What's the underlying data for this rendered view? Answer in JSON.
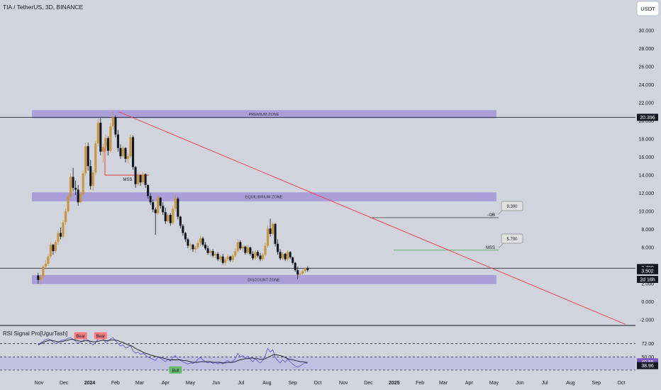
{
  "header": {
    "symbol_title": "TIA / TetherUS, 3D, BINANCE",
    "currency_button": "USDT"
  },
  "price_axis": {
    "ticks": [
      "30.000",
      "28.000",
      "26.000",
      "24.000",
      "22.000",
      "20.000",
      "18.000",
      "16.000",
      "14.000",
      "12.000",
      "10.000",
      "8.000",
      "6.000",
      "4.000",
      "2.000",
      "0.000",
      "-2.000"
    ],
    "badges": [
      {
        "label": "20.396",
        "value": 20.396,
        "style": "dark"
      },
      {
        "label": "3.700",
        "value": 3.7,
        "style": "dark"
      },
      {
        "label": "3.502",
        "value": 3.502,
        "style": "dark"
      },
      {
        "label": "2d 16h",
        "value": 2.55,
        "style": "dark"
      }
    ]
  },
  "time_axis": {
    "labels": [
      "Nov",
      "Dec",
      "2024",
      "Feb",
      "Mar",
      "Apr",
      "May",
      "Jun",
      "Jul",
      "Aug",
      "Sep",
      "Oct",
      "Nov",
      "Dec",
      "2025",
      "Feb",
      "Mar",
      "Apr",
      "May",
      "Jun",
      "Jul",
      "Aug",
      "Sep",
      "Oct"
    ],
    "bold": [
      "2024",
      "2025"
    ]
  },
  "zones": [
    {
      "label": "PREMIUM ZONE",
      "low": 20.3,
      "high": 21.2
    },
    {
      "label": "EQUILIBRIUM ZONE",
      "low": 11.1,
      "high": 12.1
    },
    {
      "label": "DISCOUNT ZONE",
      "low": 1.95,
      "high": 2.95
    }
  ],
  "annotations": {
    "mss_top": "MSS",
    "mss_right": "MSS",
    "ob_label": "-OB",
    "target_high": "9.300",
    "target_mid": "5.700"
  },
  "levels": {
    "top_line": 20.396,
    "current_line": 3.7,
    "ob_line": 9.3,
    "mss_line": 5.7,
    "mss_top_line": 14.0
  },
  "trendline": {
    "start": {
      "date": "2024-02-05",
      "value": 21.0
    },
    "end": {
      "date": "2025-10-06",
      "value": -2.5
    }
  },
  "chart_data": {
    "type": "candlestick",
    "title": "TIA / TetherUS, 3D, BINANCE",
    "ylim": [
      -2.5,
      31.5
    ],
    "candles": [
      [
        2.9,
        3.2,
        2.0,
        2.4
      ],
      [
        2.4,
        3.0,
        1.9,
        2.7
      ],
      [
        2.7,
        4.1,
        2.6,
        3.9
      ],
      [
        3.9,
        4.6,
        3.6,
        4.2
      ],
      [
        4.2,
        5.3,
        4.0,
        5.0
      ],
      [
        5.0,
        6.6,
        4.8,
        6.3
      ],
      [
        6.3,
        6.4,
        5.2,
        5.6
      ],
      [
        5.6,
        6.8,
        5.4,
        6.6
      ],
      [
        6.6,
        7.9,
        6.3,
        7.6
      ],
      [
        7.6,
        8.2,
        6.9,
        7.2
      ],
      [
        7.2,
        9.0,
        7.0,
        8.8
      ],
      [
        8.8,
        10.3,
        8.5,
        10.0
      ],
      [
        10.0,
        12.0,
        9.8,
        11.6
      ],
      [
        11.6,
        14.2,
        11.3,
        13.8
      ],
      [
        13.8,
        14.8,
        12.2,
        12.6
      ],
      [
        12.6,
        13.4,
        11.8,
        12.4
      ],
      [
        12.4,
        12.9,
        10.6,
        11.0
      ],
      [
        11.0,
        12.2,
        10.9,
        11.9
      ],
      [
        11.9,
        14.5,
        11.7,
        14.2
      ],
      [
        14.2,
        17.6,
        13.9,
        17.2
      ],
      [
        17.2,
        17.6,
        14.5,
        15.0
      ],
      [
        15.0,
        15.7,
        12.4,
        12.8
      ],
      [
        12.8,
        14.6,
        12.3,
        14.3
      ],
      [
        14.3,
        17.8,
        14.0,
        17.5
      ],
      [
        17.5,
        20.2,
        17.2,
        19.8
      ],
      [
        19.8,
        20.3,
        16.2,
        16.6
      ],
      [
        16.6,
        17.5,
        15.4,
        17.1
      ],
      [
        17.1,
        18.5,
        16.6,
        18.1
      ],
      [
        18.1,
        18.3,
        16.2,
        16.7
      ],
      [
        16.7,
        19.8,
        16.5,
        19.4
      ],
      [
        19.4,
        21.0,
        19.0,
        20.4
      ],
      [
        20.4,
        20.6,
        18.2,
        18.5
      ],
      [
        18.5,
        19.0,
        16.6,
        17.0
      ],
      [
        17.0,
        17.4,
        15.8,
        16.1
      ],
      [
        16.1,
        17.2,
        15.9,
        17.0
      ],
      [
        17.0,
        17.1,
        15.4,
        15.8
      ],
      [
        15.8,
        16.4,
        15.3,
        16.1
      ],
      [
        16.1,
        18.5,
        15.9,
        18.2
      ],
      [
        18.2,
        18.4,
        14.6,
        14.9
      ],
      [
        14.9,
        15.0,
        12.6,
        13.0
      ],
      [
        13.0,
        14.3,
        12.8,
        14.0
      ],
      [
        14.0,
        14.1,
        12.8,
        13.2
      ],
      [
        13.2,
        14.4,
        13.0,
        14.1
      ],
      [
        14.1,
        14.2,
        12.6,
        12.9
      ],
      [
        12.9,
        13.0,
        11.4,
        11.7
      ],
      [
        11.7,
        12.0,
        10.7,
        11.0
      ],
      [
        11.0,
        11.3,
        9.9,
        10.2
      ],
      [
        10.2,
        10.4,
        7.4,
        9.8
      ],
      [
        9.8,
        11.8,
        9.6,
        11.5
      ],
      [
        11.5,
        11.6,
        10.3,
        10.6
      ],
      [
        10.6,
        11.0,
        9.6,
        9.9
      ],
      [
        9.9,
        10.4,
        8.6,
        8.9
      ],
      [
        8.9,
        9.8,
        8.7,
        9.6
      ],
      [
        9.6,
        9.8,
        8.4,
        8.7
      ],
      [
        8.7,
        10.6,
        8.5,
        10.3
      ],
      [
        10.3,
        11.9,
        10.0,
        11.4
      ],
      [
        11.4,
        11.6,
        9.1,
        9.4
      ],
      [
        9.4,
        9.5,
        8.1,
        8.4
      ],
      [
        8.4,
        8.6,
        7.3,
        7.6
      ],
      [
        7.6,
        7.7,
        6.6,
        6.9
      ],
      [
        6.9,
        7.1,
        5.9,
        6.2
      ],
      [
        6.2,
        6.5,
        5.7,
        6.3
      ],
      [
        6.3,
        6.4,
        5.5,
        5.8
      ],
      [
        5.8,
        6.2,
        5.4,
        6.0
      ],
      [
        6.0,
        6.8,
        5.8,
        6.5
      ],
      [
        6.5,
        7.3,
        6.2,
        7.0
      ],
      [
        7.0,
        7.2,
        6.1,
        6.3
      ],
      [
        6.3,
        6.6,
        5.7,
        5.9
      ],
      [
        5.9,
        6.2,
        5.2,
        5.4
      ],
      [
        5.4,
        5.8,
        5.0,
        5.6
      ],
      [
        5.6,
        5.8,
        4.9,
        5.1
      ],
      [
        5.1,
        5.5,
        4.8,
        5.3
      ],
      [
        5.3,
        5.5,
        4.5,
        4.7
      ],
      [
        4.7,
        5.2,
        4.4,
        5.0
      ],
      [
        5.0,
        5.3,
        4.1,
        4.3
      ],
      [
        4.3,
        4.9,
        4.0,
        4.7
      ],
      [
        4.7,
        5.2,
        4.5,
        5.0
      ],
      [
        5.0,
        5.1,
        4.4,
        4.6
      ],
      [
        4.6,
        5.3,
        4.4,
        5.1
      ],
      [
        5.1,
        5.9,
        4.9,
        5.6
      ],
      [
        5.6,
        6.9,
        5.4,
        6.6
      ],
      [
        6.6,
        6.8,
        5.7,
        5.9
      ],
      [
        5.9,
        6.3,
        5.5,
        6.1
      ],
      [
        6.1,
        6.2,
        5.2,
        5.4
      ],
      [
        5.4,
        6.3,
        5.2,
        6.0
      ],
      [
        6.0,
        6.1,
        5.1,
        5.3
      ],
      [
        5.3,
        5.6,
        4.6,
        4.8
      ],
      [
        4.8,
        5.7,
        4.6,
        5.5
      ],
      [
        5.5,
        5.7,
        4.9,
        5.1
      ],
      [
        5.1,
        5.4,
        4.5,
        4.7
      ],
      [
        4.7,
        5.4,
        4.5,
        5.2
      ],
      [
        5.2,
        6.5,
        5.0,
        6.2
      ],
      [
        6.2,
        8.4,
        6.0,
        8.1
      ],
      [
        8.1,
        9.2,
        7.2,
        7.5
      ],
      [
        7.5,
        8.8,
        7.3,
        8.6
      ],
      [
        8.6,
        8.7,
        6.1,
        6.4
      ],
      [
        6.4,
        6.9,
        5.2,
        5.5
      ],
      [
        5.5,
        5.8,
        4.6,
        4.8
      ],
      [
        4.8,
        5.5,
        4.6,
        5.3
      ],
      [
        5.3,
        5.4,
        4.5,
        4.7
      ],
      [
        4.7,
        5.7,
        4.5,
        5.5
      ],
      [
        5.5,
        5.6,
        4.7,
        4.9
      ],
      [
        4.9,
        5.0,
        4.1,
        4.3
      ],
      [
        4.3,
        4.4,
        3.3,
        3.5
      ],
      [
        3.5,
        3.9,
        2.5,
        3.0
      ],
      [
        3.0,
        3.3,
        2.7,
        3.1
      ],
      [
        3.1,
        3.6,
        2.9,
        3.4
      ],
      [
        3.4,
        3.8,
        3.2,
        3.7
      ],
      [
        3.7,
        3.9,
        3.3,
        3.5
      ]
    ]
  },
  "rsi_panel": {
    "title": "RSI Signal Pro[UgurTash]",
    "ticks": [
      "72.00",
      "50.00"
    ],
    "badges": [
      {
        "label": "40.55",
        "value": 40.55
      },
      {
        "label": "38.96",
        "value": 38.96
      }
    ],
    "signals": [
      {
        "label": "Bear",
        "style": "bear",
        "candle": 17,
        "value": 84
      },
      {
        "label": "Bear",
        "style": "bear",
        "candle": 25,
        "value": 84
      },
      {
        "label": "Bull",
        "style": "bull",
        "candle": 55,
        "value": 27
      }
    ],
    "levels": [
      72,
      50,
      28
    ],
    "ylim": [
      22,
      94
    ],
    "rsi": [
      70,
      73,
      76,
      79,
      80,
      78,
      75,
      72,
      74,
      77,
      78,
      79,
      81,
      82,
      79,
      76,
      73,
      74,
      77,
      80,
      78,
      73,
      70,
      74,
      79,
      83,
      80,
      74,
      76,
      80,
      82,
      77,
      72,
      68,
      70,
      65,
      66,
      69,
      60,
      56,
      58,
      54,
      56,
      53,
      50,
      48,
      46,
      44,
      50,
      48,
      45,
      42,
      46,
      43,
      49,
      52,
      47,
      44,
      42,
      40,
      38,
      40,
      39,
      41,
      46,
      49,
      45,
      42,
      40,
      42,
      39,
      41,
      38,
      41,
      38,
      42,
      44,
      40,
      43,
      47,
      56,
      50,
      52,
      48,
      51,
      46,
      42,
      47,
      43,
      40,
      44,
      52,
      64,
      58,
      62,
      49,
      44,
      40,
      45,
      41,
      46,
      42,
      38,
      35,
      33,
      35,
      38,
      40,
      39
    ],
    "ma": [
      70,
      72,
      74,
      76,
      77,
      78,
      77,
      76,
      75,
      75,
      76,
      77,
      78,
      79,
      79,
      78,
      77,
      76,
      76,
      77,
      77,
      76,
      75,
      75,
      76,
      77,
      78,
      77,
      77,
      78,
      78,
      78,
      77,
      75,
      74,
      72,
      70,
      69,
      67,
      64,
      62,
      60,
      58,
      56,
      55,
      53,
      52,
      51,
      50,
      49,
      48,
      47,
      46,
      45,
      45,
      45,
      45,
      45,
      44,
      44,
      43,
      42,
      41,
      41,
      41,
      42,
      42,
      42,
      42,
      42,
      41,
      41,
      41,
      41,
      40,
      40,
      41,
      41,
      41,
      42,
      44,
      45,
      46,
      47,
      47,
      48,
      48,
      47,
      47,
      46,
      46,
      47,
      49,
      51,
      53,
      54,
      53,
      52,
      51,
      49,
      47,
      46,
      45,
      44,
      43,
      42,
      42,
      41,
      41
    ]
  }
}
